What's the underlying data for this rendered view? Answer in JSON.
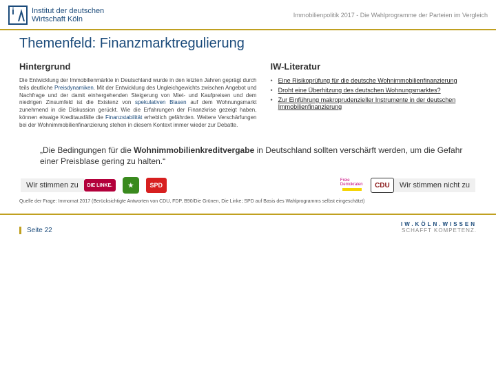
{
  "header": {
    "institute_line1": "Institut der deutschen",
    "institute_line2": "Wirtschaft Köln",
    "subtitle": "Immobilienpolitik 2017 - Die Wahlprogramme der Parteien im Vergleich"
  },
  "title": "Themenfeld: Finanzmarktregulierung",
  "left": {
    "heading": "Hintergrund",
    "p1a": "Die Entwicklung der Immobilienmärkte in Deutschland wurde in den letzten Jahren geprägt durch teils deutliche ",
    "p1b_emph": "Preisdynamiken",
    "p1c": ". Mit der Entwicklung des Ungleichgewichts zwischen Angebot und Nachfrage und der damit einhergehenden Steigerung von Miet- und Kaufpreisen und dem niedrigen Zinsumfeld ist die Existenz von ",
    "p1d_emph": "spekulativen Blasen",
    "p1e": " auf dem Wohnungsmarkt zunehmend in die Diskussion gerückt. Wie die Erfahrungen der Finanzkrise gezeigt haben, können etwaige Kreditausfälle die ",
    "p1f_emph": "Finanzstabilität",
    "p1g": " erheblich gefährden. Weitere Verschärfungen bei der Wohnimmobilienfinanzierung stehen in diesem Kontext immer wieder zur Debatte."
  },
  "right": {
    "heading": "IW-Literatur",
    "items": [
      "Eine Risikoprüfung für die deutsche Wohnimmobilienfinanzierung",
      "Droht eine Überhitzung des deutschen Wohnungsmarktes?",
      "Zur Einführung makroprudenzieller Instrumente in der deutschen Immobilienfinanzierung"
    ]
  },
  "quote": {
    "q1": "„Die Bedingungen für die ",
    "q_bold": "Wohnimmobilienkreditvergabe",
    "q2": " in Deutschland sollten verschärft werden, um die Gefahr einer Preisblase gering zu halten.“"
  },
  "agree": {
    "left": "Wir stimmen zu",
    "right": "Wir stimmen nicht zu"
  },
  "parties": {
    "linke": "DIE LINKE.",
    "gruene": "★",
    "spd": "SPD",
    "fdp": "Freie Demokraten",
    "cdu": "CDU"
  },
  "source": "Quelle der Frage: Immomat 2017 (Berücksichtigte Antworten von CDU, FDP, B90/Die Grünen, Die Linke; SPD auf Basis des Wahlprogramms selbst eingeschätzt)",
  "footer": {
    "page": "Seite 22",
    "brand1": "IW.KÖLN.WISSEN",
    "brand2": "SCHAFFT KOMPETENZ."
  },
  "colors": {
    "primary": "#1a4a7a",
    "accent": "#c0a020",
    "linke": "#b3003b",
    "gruene": "#3a8a1e",
    "spd": "#d71f1f",
    "fdp_text": "#c7007d",
    "fdp_bar": "#f5d400",
    "cdu": "#8b1a1a"
  }
}
